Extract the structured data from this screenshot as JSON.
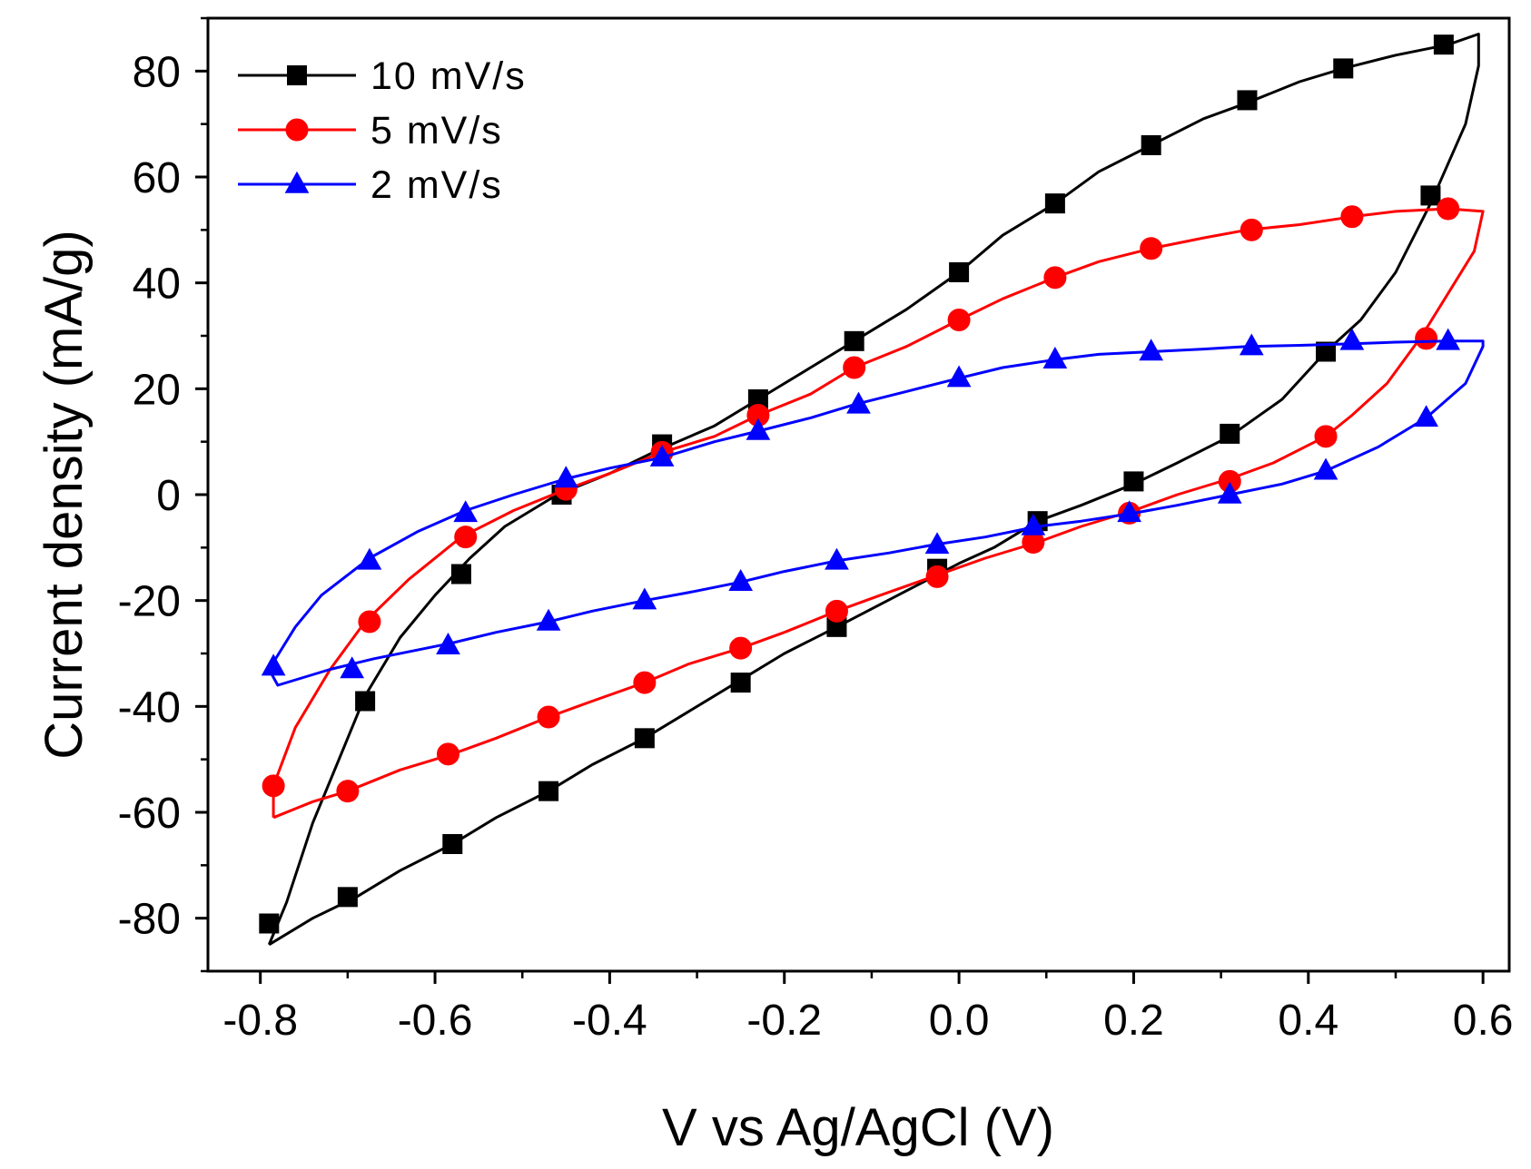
{
  "chart_data": {
    "type": "line",
    "title": "",
    "xlabel": "V vs Ag/AgCl (V)",
    "ylabel": "Current density (mA/g)",
    "xlim": [
      -0.86,
      0.63
    ],
    "ylim": [
      -90,
      90
    ],
    "xticks": [
      -0.8,
      -0.6,
      -0.4,
      -0.2,
      0.0,
      0.2,
      0.4,
      0.6
    ],
    "xtick_labels": [
      "-0.8",
      "-0.6",
      "-0.4",
      "-0.2",
      "0.0",
      "0.2",
      "0.4",
      "0.6"
    ],
    "yticks": [
      -80,
      -60,
      -40,
      -20,
      0,
      20,
      40,
      60,
      80
    ],
    "ytick_labels": [
      "-80",
      "-60",
      "-40",
      "-20",
      "0",
      "20",
      "40",
      "60",
      "80"
    ],
    "legend_position": "top-left",
    "series": [
      {
        "name": "10 mV/s",
        "color": "#000000",
        "marker": "square",
        "curve": [
          [
            -0.79,
            -85
          ],
          [
            -0.77,
            -77
          ],
          [
            -0.74,
            -62
          ],
          [
            -0.71,
            -50
          ],
          [
            -0.68,
            -38
          ],
          [
            -0.64,
            -27
          ],
          [
            -0.6,
            -19
          ],
          [
            -0.56,
            -12
          ],
          [
            -0.52,
            -6
          ],
          [
            -0.46,
            0
          ],
          [
            -0.4,
            4
          ],
          [
            -0.35,
            8
          ],
          [
            -0.28,
            13
          ],
          [
            -0.23,
            18
          ],
          [
            -0.17,
            24
          ],
          [
            -0.12,
            29
          ],
          [
            -0.06,
            35
          ],
          [
            0.0,
            42
          ],
          [
            0.05,
            49
          ],
          [
            0.11,
            55
          ],
          [
            0.16,
            61
          ],
          [
            0.22,
            66
          ],
          [
            0.28,
            71
          ],
          [
            0.33,
            74
          ],
          [
            0.39,
            78
          ],
          [
            0.44,
            80.5
          ],
          [
            0.5,
            83
          ],
          [
            0.56,
            85
          ],
          [
            0.595,
            87
          ],
          [
            0.595,
            81
          ],
          [
            0.58,
            70
          ],
          [
            0.54,
            55
          ],
          [
            0.5,
            42
          ],
          [
            0.46,
            33
          ],
          [
            0.42,
            27
          ],
          [
            0.37,
            18
          ],
          [
            0.31,
            11
          ],
          [
            0.25,
            6
          ],
          [
            0.2,
            2
          ],
          [
            0.14,
            -2
          ],
          [
            0.09,
            -5
          ],
          [
            0.04,
            -10
          ],
          [
            0.0,
            -13
          ],
          [
            -0.07,
            -19
          ],
          [
            -0.14,
            -25
          ],
          [
            -0.2,
            -30
          ],
          [
            -0.25,
            -35
          ],
          [
            -0.31,
            -41
          ],
          [
            -0.36,
            -46
          ],
          [
            -0.42,
            -51
          ],
          [
            -0.47,
            -56
          ],
          [
            -0.53,
            -61
          ],
          [
            -0.58,
            -66
          ],
          [
            -0.64,
            -71
          ],
          [
            -0.69,
            -76
          ],
          [
            -0.74,
            -80
          ],
          [
            -0.79,
            -85
          ]
        ],
        "markers": [
          [
            0.555,
            85
          ],
          [
            0.44,
            80.5
          ],
          [
            0.33,
            74.5
          ],
          [
            0.22,
            66
          ],
          [
            0.11,
            55
          ],
          [
            0.0,
            42
          ],
          [
            -0.12,
            29
          ],
          [
            -0.23,
            18
          ],
          [
            -0.34,
            9.5
          ],
          [
            -0.455,
            0
          ],
          [
            -0.57,
            -15
          ],
          [
            -0.68,
            -39
          ],
          [
            -0.79,
            -81
          ],
          [
            -0.7,
            -76
          ],
          [
            -0.58,
            -66
          ],
          [
            -0.47,
            -56
          ],
          [
            -0.36,
            -46
          ],
          [
            -0.25,
            -35.5
          ],
          [
            -0.14,
            -25
          ],
          [
            -0.025,
            -14
          ],
          [
            0.09,
            -5
          ],
          [
            0.2,
            2.5
          ],
          [
            0.31,
            11.5
          ],
          [
            0.42,
            27
          ],
          [
            0.54,
            56.5
          ]
        ]
      },
      {
        "name": "5 mV/s",
        "color": "#ff0000",
        "marker": "circle",
        "curve": [
          [
            -0.785,
            -61
          ],
          [
            -0.785,
            -55
          ],
          [
            -0.76,
            -44
          ],
          [
            -0.72,
            -33
          ],
          [
            -0.68,
            -24
          ],
          [
            -0.63,
            -16
          ],
          [
            -0.57,
            -8
          ],
          [
            -0.51,
            -3
          ],
          [
            -0.45,
            1
          ],
          [
            -0.4,
            4
          ],
          [
            -0.34,
            8
          ],
          [
            -0.28,
            11
          ],
          [
            -0.23,
            15
          ],
          [
            -0.17,
            19
          ],
          [
            -0.12,
            24
          ],
          [
            -0.06,
            28
          ],
          [
            0.0,
            33
          ],
          [
            0.05,
            37
          ],
          [
            0.11,
            41
          ],
          [
            0.16,
            44
          ],
          [
            0.22,
            46.5
          ],
          [
            0.28,
            48.5
          ],
          [
            0.33,
            50
          ],
          [
            0.39,
            51
          ],
          [
            0.45,
            52.5
          ],
          [
            0.5,
            53.5
          ],
          [
            0.56,
            54
          ],
          [
            0.6,
            53.5
          ],
          [
            0.59,
            46
          ],
          [
            0.56,
            38
          ],
          [
            0.53,
            30
          ],
          [
            0.49,
            21
          ],
          [
            0.45,
            15
          ],
          [
            0.42,
            11
          ],
          [
            0.36,
            6
          ],
          [
            0.31,
            3
          ],
          [
            0.25,
            0
          ],
          [
            0.2,
            -3
          ],
          [
            0.14,
            -6
          ],
          [
            0.09,
            -9
          ],
          [
            0.03,
            -12
          ],
          [
            -0.03,
            -15.5
          ],
          [
            -0.09,
            -19
          ],
          [
            -0.14,
            -22
          ],
          [
            -0.2,
            -26
          ],
          [
            -0.25,
            -29
          ],
          [
            -0.31,
            -32
          ],
          [
            -0.36,
            -35.5
          ],
          [
            -0.42,
            -39
          ],
          [
            -0.47,
            -42
          ],
          [
            -0.53,
            -46
          ],
          [
            -0.58,
            -49
          ],
          [
            -0.64,
            -52
          ],
          [
            -0.7,
            -56
          ],
          [
            -0.74,
            -58
          ],
          [
            -0.785,
            -61
          ]
        ],
        "markers": [
          [
            0.56,
            54
          ],
          [
            0.45,
            52.5
          ],
          [
            0.335,
            50
          ],
          [
            0.22,
            46.5
          ],
          [
            0.11,
            41
          ],
          [
            0.0,
            33
          ],
          [
            -0.12,
            24
          ],
          [
            -0.23,
            15
          ],
          [
            -0.34,
            8
          ],
          [
            -0.45,
            1
          ],
          [
            -0.565,
            -8
          ],
          [
            -0.675,
            -24
          ],
          [
            -0.785,
            -55
          ],
          [
            -0.7,
            -56
          ],
          [
            -0.585,
            -49
          ],
          [
            -0.47,
            -42
          ],
          [
            -0.36,
            -35.5
          ],
          [
            -0.25,
            -29
          ],
          [
            -0.14,
            -22
          ],
          [
            -0.025,
            -15.5
          ],
          [
            0.085,
            -9
          ],
          [
            0.195,
            -3.5
          ],
          [
            0.31,
            2.5
          ],
          [
            0.42,
            11
          ],
          [
            0.535,
            29.5
          ]
        ]
      },
      {
        "name": "2 mV/s",
        "color": "#0000ff",
        "marker": "triangle",
        "curve": [
          [
            -0.79,
            -33
          ],
          [
            -0.78,
            -36
          ],
          [
            -0.72,
            -33
          ],
          [
            -0.67,
            -31
          ],
          [
            -0.61,
            -29
          ],
          [
            -0.58,
            -28
          ],
          [
            -0.53,
            -26
          ],
          [
            -0.47,
            -24
          ],
          [
            -0.42,
            -22
          ],
          [
            -0.36,
            -20
          ],
          [
            -0.31,
            -18.5
          ],
          [
            -0.25,
            -16.5
          ],
          [
            -0.2,
            -14.5
          ],
          [
            -0.14,
            -12.5
          ],
          [
            -0.08,
            -11
          ],
          [
            -0.03,
            -9.5
          ],
          [
            0.03,
            -8
          ],
          [
            0.09,
            -6
          ],
          [
            0.14,
            -5
          ],
          [
            0.2,
            -3.5
          ],
          [
            0.25,
            -2
          ],
          [
            0.31,
            0
          ],
          [
            0.37,
            2
          ],
          [
            0.42,
            4.5
          ],
          [
            0.48,
            9
          ],
          [
            0.535,
            14.5
          ],
          [
            0.58,
            21
          ],
          [
            0.6,
            28
          ],
          [
            0.6,
            29
          ],
          [
            0.56,
            29
          ],
          [
            0.5,
            28.8
          ],
          [
            0.45,
            28.5
          ],
          [
            0.39,
            28.2
          ],
          [
            0.33,
            28
          ],
          [
            0.28,
            27.5
          ],
          [
            0.22,
            27
          ],
          [
            0.16,
            26.5
          ],
          [
            0.11,
            25.5
          ],
          [
            0.05,
            24
          ],
          [
            0.0,
            22
          ],
          [
            -0.06,
            19.5
          ],
          [
            -0.12,
            17
          ],
          [
            -0.17,
            14.5
          ],
          [
            -0.23,
            12
          ],
          [
            -0.28,
            10
          ],
          [
            -0.34,
            7
          ],
          [
            -0.4,
            5
          ],
          [
            -0.45,
            3
          ],
          [
            -0.51,
            0
          ],
          [
            -0.565,
            -3
          ],
          [
            -0.62,
            -7
          ],
          [
            -0.675,
            -12
          ],
          [
            -0.73,
            -19
          ],
          [
            -0.76,
            -25
          ],
          [
            -0.79,
            -33
          ]
        ],
        "markers": [
          [
            0.56,
            29
          ],
          [
            0.45,
            29
          ],
          [
            0.335,
            28
          ],
          [
            0.22,
            27
          ],
          [
            0.11,
            25.5
          ],
          [
            0.0,
            22
          ],
          [
            -0.115,
            17
          ],
          [
            -0.23,
            12
          ],
          [
            -0.34,
            7
          ],
          [
            -0.45,
            3
          ],
          [
            -0.565,
            -3.5
          ],
          [
            -0.675,
            -12.5
          ],
          [
            -0.785,
            -32.5
          ],
          [
            -0.695,
            -33
          ],
          [
            -0.585,
            -28.5
          ],
          [
            -0.47,
            -24
          ],
          [
            -0.36,
            -20
          ],
          [
            -0.25,
            -16.5
          ],
          [
            -0.14,
            -12.5
          ],
          [
            -0.025,
            -9.5
          ],
          [
            0.085,
            -6
          ],
          [
            0.195,
            -3.5
          ],
          [
            0.31,
            0
          ],
          [
            0.42,
            4.5
          ],
          [
            0.535,
            14.5
          ]
        ]
      }
    ]
  }
}
